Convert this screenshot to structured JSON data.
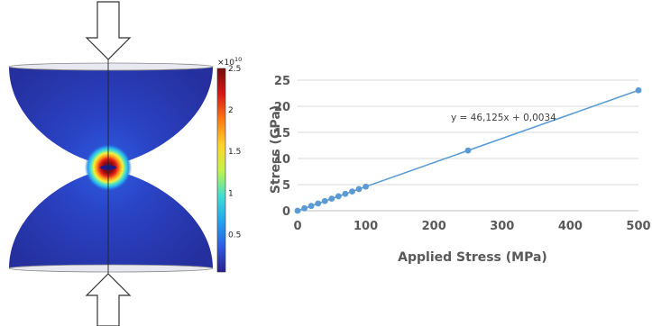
{
  "colorbar": {
    "exponent_prefix": "×10",
    "exponent": "10",
    "ticks": [
      {
        "value": 2.5,
        "label": "2.5"
      },
      {
        "value": 2,
        "label": "2"
      },
      {
        "value": 1.5,
        "label": "1.5"
      },
      {
        "value": 1,
        "label": "1"
      },
      {
        "value": 0.5,
        "label": "0.5"
      }
    ],
    "min": 0.05,
    "max": 2.5,
    "colors": [
      "#2a1d8f",
      "#2f5be3",
      "#22a5f0",
      "#3fe0d0",
      "#c6f24a",
      "#ffd32a",
      "#ff7a12",
      "#d81818",
      "#7a0a0a"
    ]
  },
  "chart_data": {
    "type": "scatter",
    "title": "",
    "xlabel": "Applied Stress (MPa)",
    "ylabel": "Stress (GPa)",
    "xlim": [
      0,
      500
    ],
    "ylim": [
      0,
      25
    ],
    "x_ticks": [
      0,
      100,
      200,
      300,
      400,
      500
    ],
    "y_ticks": [
      0,
      5,
      10,
      15,
      20,
      25
    ],
    "grid": "horizontal",
    "trendline": {
      "slope": 46.125,
      "intercept": 0.0034
    },
    "annotation": "y = 46,125x + 0,0034",
    "series": [
      {
        "color": "#5b9bd5",
        "x": [
          0,
          10,
          20,
          30,
          40,
          50,
          60,
          70,
          80,
          90,
          100,
          250,
          500
        ],
        "y": [
          0.0,
          0.46,
          0.92,
          1.38,
          1.85,
          2.31,
          2.77,
          3.23,
          3.69,
          4.15,
          4.61,
          11.53,
          23.06
        ]
      }
    ]
  }
}
